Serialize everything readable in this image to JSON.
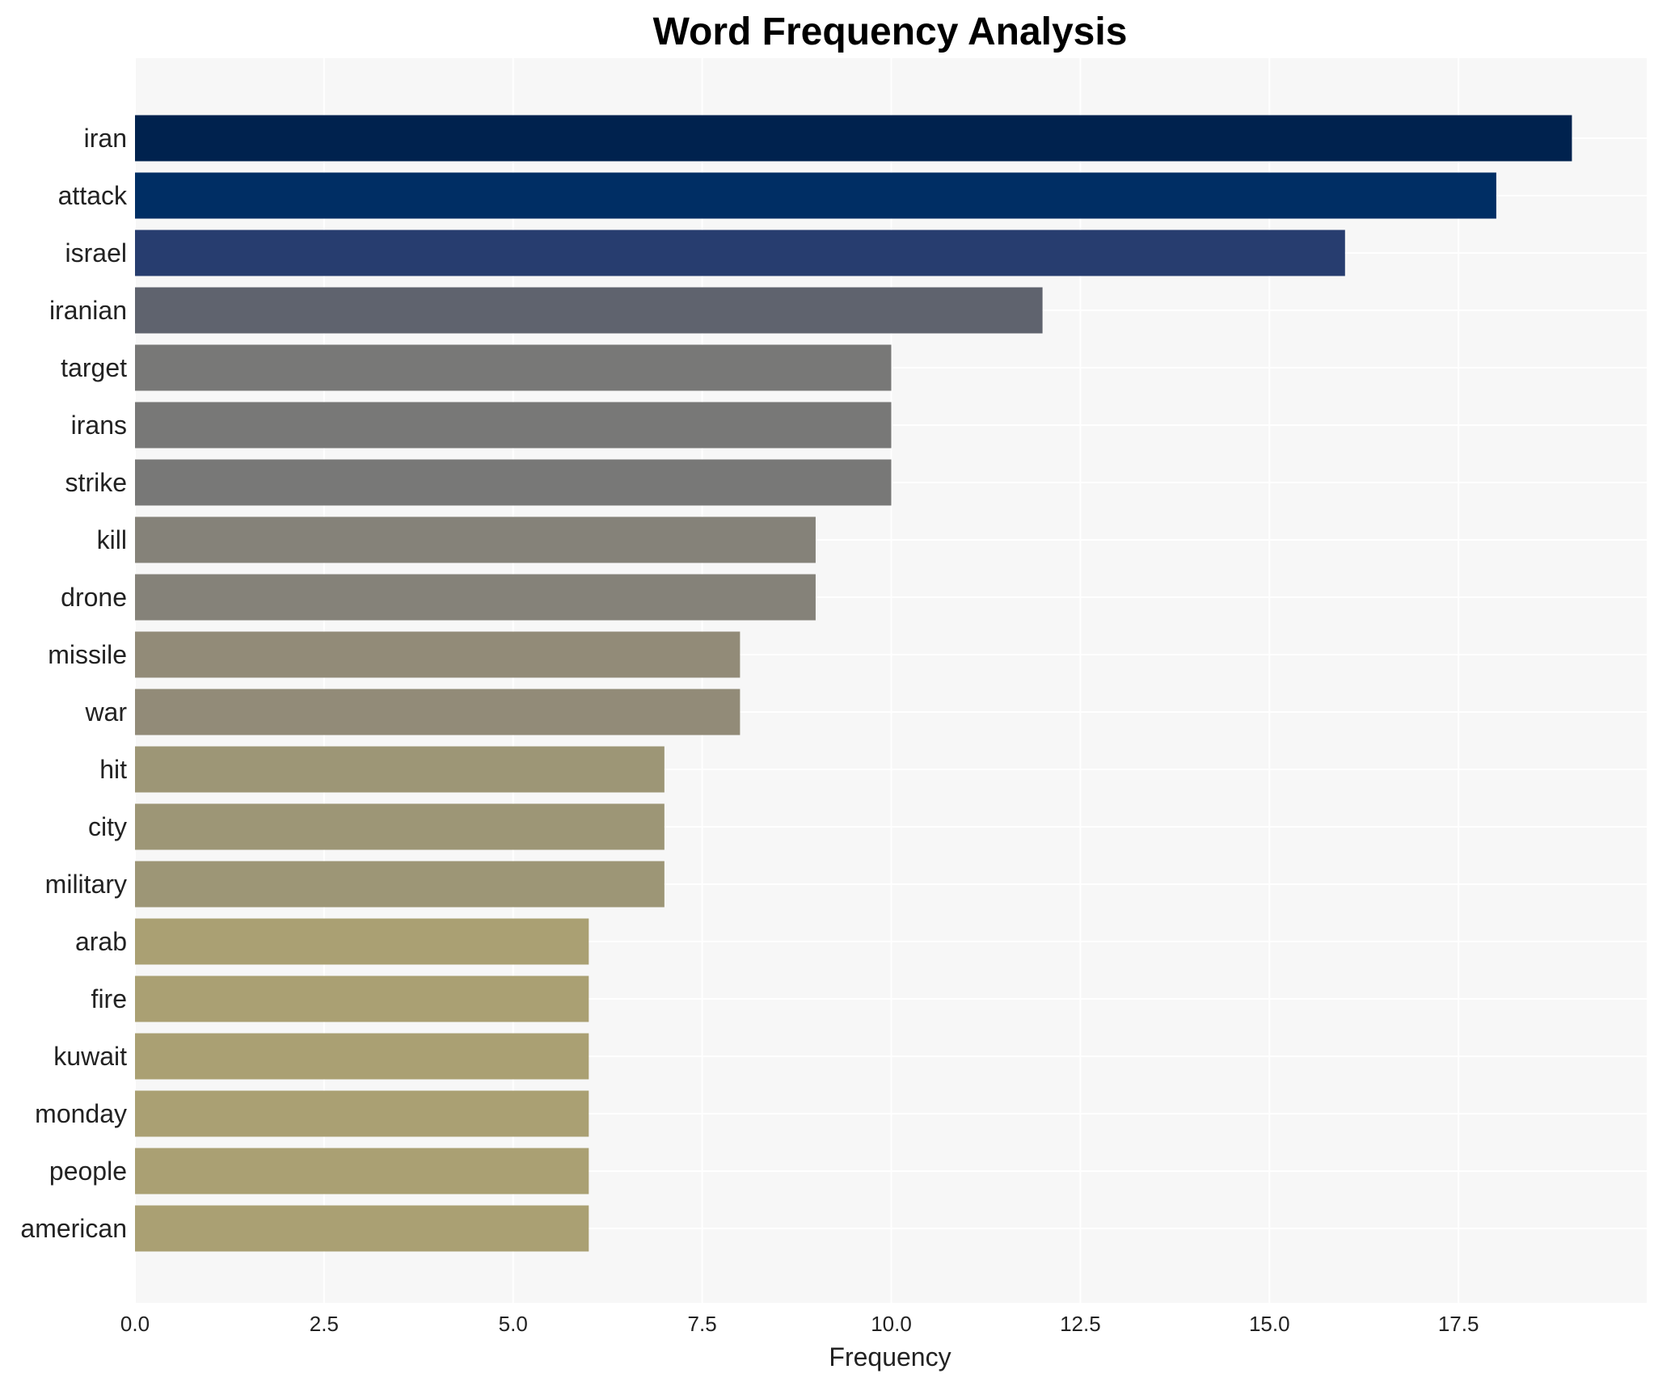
{
  "chart_data": {
    "type": "bar",
    "orientation": "horizontal",
    "title": "Word Frequency Analysis",
    "xlabel": "Frequency",
    "ylabel": "",
    "categories": [
      "iran",
      "attack",
      "israel",
      "iranian",
      "target",
      "irans",
      "strike",
      "kill",
      "drone",
      "missile",
      "war",
      "hit",
      "city",
      "military",
      "arab",
      "fire",
      "kuwait",
      "monday",
      "people",
      "american"
    ],
    "values": [
      19,
      18,
      16,
      12,
      10,
      10,
      10,
      9,
      9,
      8,
      8,
      7,
      7,
      7,
      6,
      6,
      6,
      6,
      6,
      6
    ],
    "colors": [
      "#00224e",
      "#002e64",
      "#273d6f",
      "#5f636e",
      "#787877",
      "#787877",
      "#787877",
      "#858279",
      "#858279",
      "#928b78",
      "#928b78",
      "#9d9676",
      "#9d9676",
      "#9d9676",
      "#aaa073",
      "#aaa073",
      "#aaa073",
      "#aaa073",
      "#aaa073",
      "#aaa073"
    ],
    "xlim": [
      0,
      20
    ],
    "xticks": [
      0,
      2.5,
      5,
      7.5,
      10,
      12.5,
      15,
      17.5
    ],
    "xtick_labels": [
      "0.0",
      "2.5",
      "5.0",
      "7.5",
      "10.0",
      "12.5",
      "15.0",
      "17.5"
    ],
    "grid": true,
    "plot_background": "#f7f7f7",
    "grid_color": "#ffffff"
  }
}
